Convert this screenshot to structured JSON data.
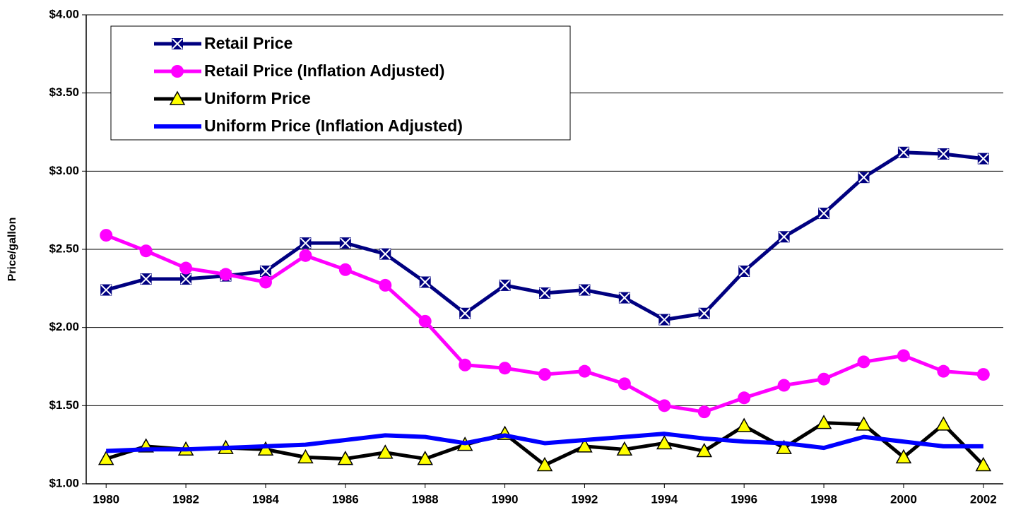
{
  "chart_data": {
    "type": "line",
    "y_label": "Price/gallon",
    "x": [
      1980,
      1981,
      1982,
      1983,
      1984,
      1985,
      1986,
      1987,
      1988,
      1989,
      1990,
      1991,
      1992,
      1993,
      1994,
      1995,
      1996,
      1997,
      1998,
      1999,
      2000,
      2001,
      2002
    ],
    "xlim": [
      1979.5,
      2002.5
    ],
    "xticks": [
      1980,
      1982,
      1984,
      1986,
      1988,
      1990,
      1992,
      1994,
      1996,
      1998,
      2000,
      2002
    ],
    "ylim": [
      1,
      4
    ],
    "yticks": [
      {
        "value": 1,
        "label": "$1.00"
      },
      {
        "value": 1.5,
        "label": "$1.50"
      },
      {
        "value": 2,
        "label": "$2.00"
      },
      {
        "value": 2.5,
        "label": "$2.50"
      },
      {
        "value": 3,
        "label": "$3.00"
      },
      {
        "value": 3.5,
        "label": "$3.50"
      },
      {
        "value": 4,
        "label": "$4.00"
      }
    ],
    "grid": true,
    "legend": "top-left",
    "series": [
      {
        "name": "Retail Price",
        "color": "#000080",
        "marker": "x-square",
        "values": [
          2.24,
          2.31,
          2.31,
          2.33,
          2.36,
          2.54,
          2.54,
          2.47,
          2.29,
          2.09,
          2.27,
          2.22,
          2.24,
          2.19,
          2.05,
          2.09,
          2.36,
          2.58,
          2.73,
          2.96,
          3.12,
          3.11,
          3.08
        ]
      },
      {
        "name": "Retail Price (Inflation Adjusted)",
        "color": "#ff00ff",
        "marker": "circle",
        "values": [
          2.59,
          2.49,
          2.38,
          2.34,
          2.29,
          2.46,
          2.37,
          2.27,
          2.04,
          1.76,
          1.74,
          1.7,
          1.72,
          1.64,
          1.5,
          1.46,
          1.55,
          1.63,
          1.67,
          1.78,
          1.82,
          1.72,
          1.7
        ]
      },
      {
        "name": "Uniform Price",
        "color": "#000000",
        "marker": "triangle",
        "marker_fill": "#ffff00",
        "values": [
          1.16,
          1.24,
          1.22,
          1.23,
          1.22,
          1.17,
          1.16,
          1.2,
          1.16,
          1.25,
          1.32,
          1.12,
          1.24,
          1.22,
          1.26,
          1.21,
          1.37,
          1.23,
          1.39,
          1.38,
          1.17,
          1.38,
          1.12
        ]
      },
      {
        "name": "Uniform Price (Inflation Adjusted)",
        "color": "#0000ff",
        "values": [
          1.21,
          1.22,
          1.22,
          1.23,
          1.24,
          1.25,
          1.28,
          1.31,
          1.3,
          1.26,
          1.31,
          1.26,
          1.28,
          1.3,
          1.32,
          1.29,
          1.27,
          1.26,
          1.23,
          1.3,
          1.27,
          1.24,
          1.24
        ]
      }
    ]
  }
}
